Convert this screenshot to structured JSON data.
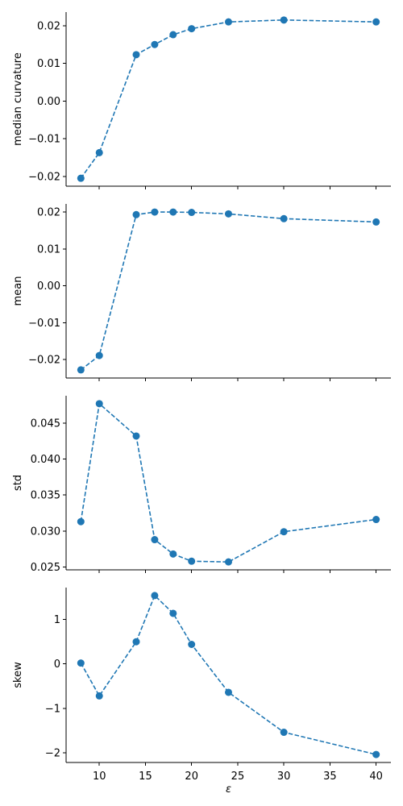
{
  "chart_data": [
    {
      "type": "line",
      "x": [
        8,
        10,
        14,
        16,
        18,
        20,
        24,
        30,
        40
      ],
      "values": [
        -0.0205,
        -0.0137,
        0.0123,
        0.015,
        0.0176,
        0.0192,
        0.021,
        0.0215,
        0.021
      ],
      "ylabel": "median curvature",
      "xlabel": "",
      "yticks": [
        -0.02,
        -0.01,
        0.0,
        0.01,
        0.02
      ],
      "ytick_labels": [
        "−0.02",
        "−0.01",
        "0.00",
        "0.01",
        "0.02"
      ],
      "xlim": [
        6.4,
        41.6
      ],
      "ylim": [
        -0.0226,
        0.0236
      ],
      "line_style": "dashed",
      "marker": "circle",
      "color": "#1f77b4",
      "grid": false
    },
    {
      "type": "line",
      "x": [
        8,
        10,
        14,
        16,
        18,
        20,
        24,
        30,
        40
      ],
      "values": [
        -0.0228,
        -0.0189,
        0.0193,
        0.02,
        0.02,
        0.0199,
        0.0195,
        0.0182,
        0.0173
      ],
      "ylabel": "mean",
      "xlabel": "",
      "yticks": [
        -0.02,
        -0.01,
        0.0,
        0.01,
        0.02
      ],
      "ytick_labels": [
        "−0.02",
        "−0.01",
        "0.00",
        "0.01",
        "0.02"
      ],
      "xlim": [
        6.4,
        41.6
      ],
      "ylim": [
        -0.025,
        0.0222
      ],
      "line_style": "dashed",
      "marker": "circle",
      "color": "#1f77b4",
      "grid": false
    },
    {
      "type": "line",
      "x": [
        8,
        10,
        14,
        16,
        18,
        20,
        24,
        30,
        40
      ],
      "values": [
        0.0313,
        0.0477,
        0.0432,
        0.0288,
        0.0268,
        0.0258,
        0.0257,
        0.0299,
        0.0316
      ],
      "ylabel": "std",
      "xlabel": "",
      "yticks": [
        0.025,
        0.03,
        0.035,
        0.04,
        0.045
      ],
      "ytick_labels": [
        "0.025",
        "0.030",
        "0.035",
        "0.040",
        "0.045"
      ],
      "xlim": [
        6.4,
        41.6
      ],
      "ylim": [
        0.0246,
        0.0488
      ],
      "line_style": "dashed",
      "marker": "circle",
      "color": "#1f77b4",
      "grid": false
    },
    {
      "type": "line",
      "x": [
        8,
        10,
        14,
        16,
        18,
        20,
        24,
        30,
        40
      ],
      "values": [
        0.02,
        -0.72,
        0.5,
        1.54,
        1.14,
        0.44,
        -0.64,
        -1.54,
        -2.04
      ],
      "ylabel": "skew",
      "xlabel": "ε",
      "yticks": [
        -2,
        -1,
        0,
        1
      ],
      "ytick_labels": [
        "−2",
        "−1",
        "0",
        "1"
      ],
      "xticks": [
        10,
        15,
        20,
        25,
        30,
        35,
        40
      ],
      "xtick_labels": [
        "10",
        "15",
        "20",
        "25",
        "30",
        "35",
        "40"
      ],
      "xlim": [
        6.4,
        41.6
      ],
      "ylim": [
        -2.22,
        1.72
      ],
      "line_style": "dashed",
      "marker": "circle",
      "color": "#1f77b4",
      "grid": false
    }
  ]
}
